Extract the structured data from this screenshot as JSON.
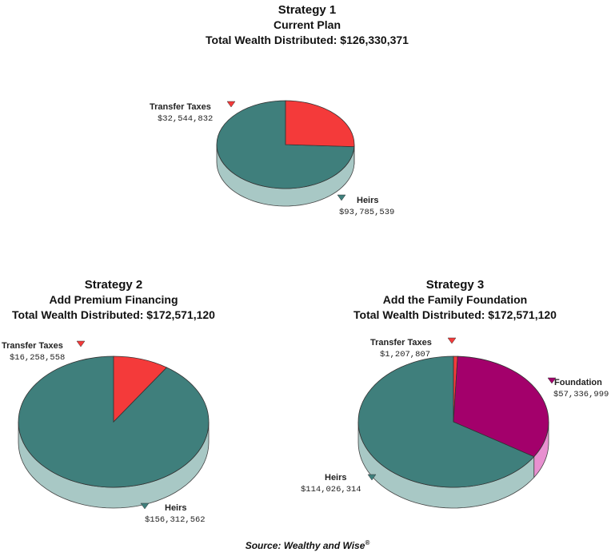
{
  "colors": {
    "heirs": "#3f7f7c",
    "heirs_side": "#a8c8c5",
    "transfer_taxes": "#f43a3a",
    "transfer_taxes_side": "#f8a0a0",
    "foundation": "#a3006b",
    "foundation_side": "#e890d0"
  },
  "charts": [
    {
      "title": "Strategy 1",
      "subtitle": "Current Plan",
      "total_label": "Total Wealth Distributed: $126,330,371",
      "labels": {
        "heirs": {
          "name": "Heirs",
          "value": "$93,785,539"
        },
        "transfer_taxes": {
          "name": "Transfer Taxes",
          "value": "$32,544,832"
        }
      }
    },
    {
      "title": "Strategy 2",
      "subtitle": "Add Premium Financing",
      "total_label": "Total Wealth Distributed: $172,571,120",
      "labels": {
        "heirs": {
          "name": "Heirs",
          "value": "$156,312,562"
        },
        "transfer_taxes": {
          "name": "Transfer Taxes",
          "value": "$16,258,558"
        }
      }
    },
    {
      "title": "Strategy 3",
      "subtitle": "Add the Family Foundation",
      "total_label": "Total Wealth Distributed: $172,571,120",
      "labels": {
        "heirs": {
          "name": "Heirs",
          "value": "$114,026,314"
        },
        "transfer_taxes": {
          "name": "Transfer Taxes",
          "value": "$1,207,807"
        },
        "foundation": {
          "name": "Foundation",
          "value": "$57,336,999"
        }
      }
    }
  ],
  "chart_data": [
    {
      "type": "pie",
      "title": "Strategy 1",
      "categories": [
        "Heirs",
        "Transfer Taxes"
      ],
      "values": [
        93785539,
        32544832
      ]
    },
    {
      "type": "pie",
      "title": "Strategy 2",
      "categories": [
        "Heirs",
        "Transfer Taxes"
      ],
      "values": [
        156312562,
        16258558
      ]
    },
    {
      "type": "pie",
      "title": "Strategy 3",
      "categories": [
        "Heirs",
        "Transfer Taxes",
        "Foundation"
      ],
      "values": [
        114026314,
        1207807,
        57336999
      ]
    }
  ],
  "source": {
    "prefix": "Source: ",
    "name": "Wealthy and Wise",
    "mark": "®"
  }
}
